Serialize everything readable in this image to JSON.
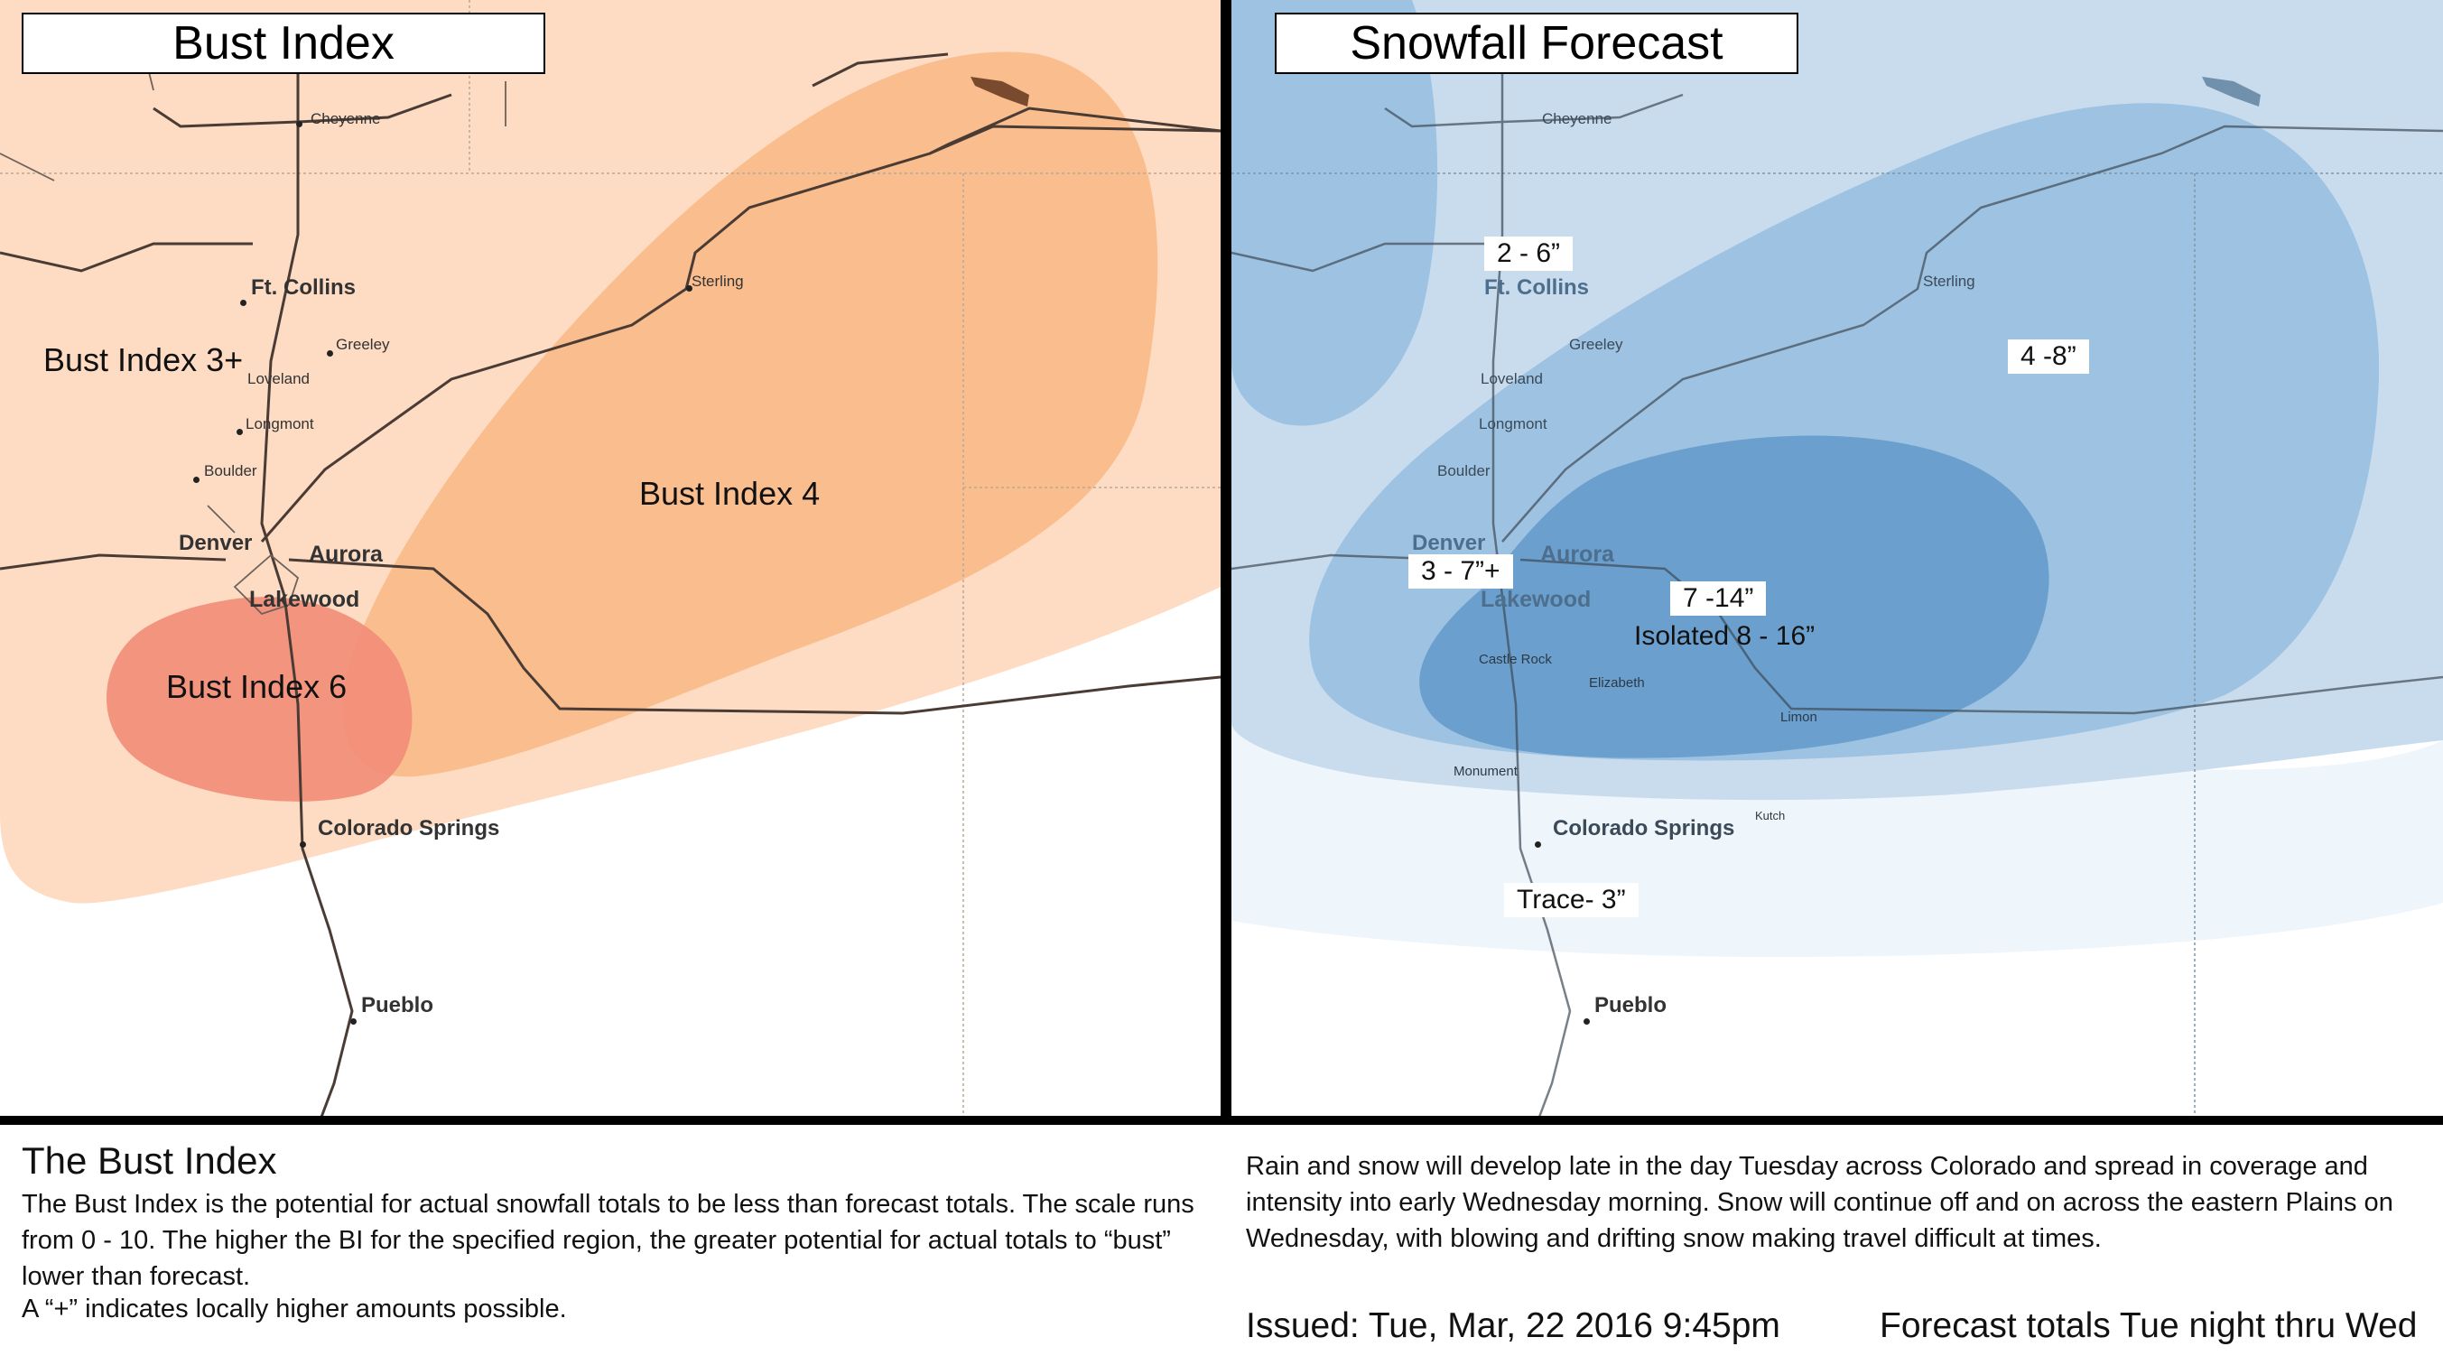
{
  "left_panel": {
    "title": "Bust Index",
    "zones": [
      {
        "label": "Bust Index 3+",
        "level": "3+"
      },
      {
        "label": "Bust Index 4",
        "level": "4"
      },
      {
        "label": "Bust Index 6",
        "level": "6"
      }
    ],
    "colors": {
      "base": "#fddcc3",
      "zone4": "#f9b987",
      "zone6": "#f28c78"
    }
  },
  "right_panel": {
    "title": "Snowfall Forecast",
    "amounts": {
      "a1": "2 - 6”",
      "a2": "4 -8”",
      "a3": "3 - 7”+",
      "a4": "7 -14”",
      "a5": "Isolated 8 - 16”",
      "a6": "Trace- 3”"
    },
    "colors": {
      "trace": "#eef5fb",
      "light": "#c8dcee",
      "medium": "#9ec2e2",
      "heavy": "#6a9fce"
    }
  },
  "cities": {
    "cheyenne": "Cheyenne",
    "ft_collins": "Ft. Collins",
    "greeley": "Greeley",
    "loveland": "Loveland",
    "longmont": "Longmont",
    "boulder": "Boulder",
    "denver": "Denver",
    "aurora": "Aurora",
    "lakewood": "Lakewood",
    "sterling": "Sterling",
    "colorado_springs": "Colorado Springs",
    "pueblo": "Pueblo",
    "castle_rock": "Castle Rock",
    "elizabeth": "Elizabeth",
    "limon": "Limon",
    "monument": "Monument",
    "kutch": "Kutch"
  },
  "footer": {
    "bust_heading": "The Bust Index",
    "bust_body": "The Bust Index is the potential for actual snowfall totals to be less than forecast totals. The scale runs from 0 - 10. The higher the BI for the specified region, the greater potential for actual totals to “bust” lower than forecast.",
    "bust_note": "A “+” indicates locally higher amounts possible.",
    "forecast_body": "Rain and snow will develop late in the day Tuesday across Colorado and spread in coverage and intensity into early Wednesday morning. Snow will continue off and on across the eastern Plains on Wednesday, with blowing and drifting snow making travel difficult at times.",
    "issued": "Issued: Tue, Mar, 22 2016 9:45pm",
    "totals": "Forecast totals Tue night thru Wed"
  }
}
